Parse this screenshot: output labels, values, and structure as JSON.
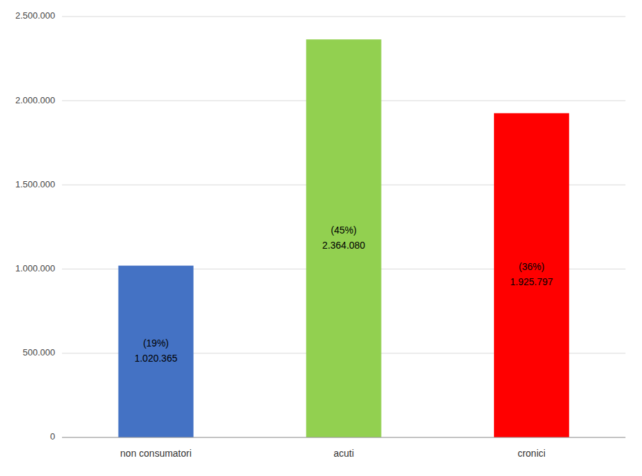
{
  "chart_data": {
    "type": "bar",
    "categories": [
      "non consumatori",
      "acuti",
      "cronici"
    ],
    "values": [
      1020365,
      2364080,
      1925797
    ],
    "colors": [
      "#4472C4",
      "#92D050",
      "#FF0000"
    ],
    "data_labels": true,
    "value_labels": [
      "1.020.365",
      "2.364.080",
      "1.925.797"
    ],
    "shares": [
      {
        "value": 19,
        "label": "(19%)"
      },
      {
        "value": 45,
        "label": "(45%)"
      },
      {
        "value": 36,
        "label": "(36%)"
      }
    ],
    "ylim": [
      0,
      2500000
    ],
    "yticks": [
      0,
      {
        "value": 500000,
        "label": "500.000"
      },
      {
        "value": 1000000,
        "label": "1.000.000"
      },
      {
        "value": 1500000,
        "label": "1.500.000"
      },
      {
        "value": 2000000,
        "label": "2.000.000"
      },
      {
        "value": 2500000,
        "label": "2.500.000"
      }
    ],
    "grid": true
  }
}
